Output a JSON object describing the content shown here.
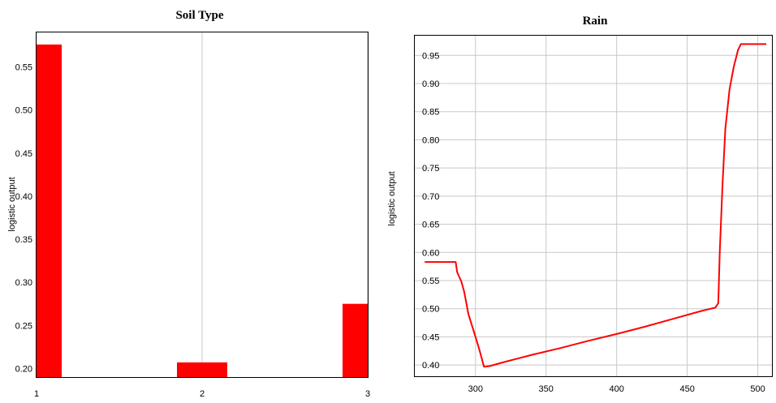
{
  "chart_data": [
    {
      "type": "bar",
      "title": "Soil Type",
      "xlabel": "",
      "ylabel": "logistic output",
      "categories": [
        "1",
        "2",
        "3"
      ],
      "values": [
        0.576,
        0.207,
        0.275
      ],
      "ylim": [
        0.19,
        0.59
      ],
      "yticks": [
        0.2,
        0.25,
        0.3,
        0.35,
        0.4,
        0.45,
        0.5,
        0.55
      ],
      "ytick_labels": [
        "0.20",
        "0.25",
        "0.30",
        "0.35",
        "0.40",
        "0.45",
        "0.50",
        "0.55"
      ],
      "grid": true,
      "color": "#ff0000"
    },
    {
      "type": "line",
      "title": "Rain",
      "xlabel": "",
      "ylabel": "logistic output",
      "xlim": [
        257,
        510
      ],
      "ylim": [
        0.38,
        0.985
      ],
      "xticks": [
        300,
        350,
        400,
        450,
        500
      ],
      "xtick_labels": [
        "300",
        "350",
        "400",
        "450",
        "500"
      ],
      "yticks": [
        0.4,
        0.45,
        0.5,
        0.55,
        0.6,
        0.65,
        0.7,
        0.75,
        0.8,
        0.85,
        0.9,
        0.95
      ],
      "ytick_labels": [
        "0.40",
        "0.45",
        "0.50",
        "0.55",
        "0.60",
        "0.65",
        "0.70",
        "0.75",
        "0.80",
        "0.85",
        "0.90",
        "0.95"
      ],
      "grid": true,
      "color": "#ff0000",
      "x": [
        264,
        286,
        287,
        290,
        292,
        295,
        300,
        303,
        306,
        310,
        320,
        340,
        360,
        380,
        400,
        420,
        440,
        460,
        470,
        472,
        473,
        475,
        477,
        480,
        483,
        486,
        488,
        490,
        495,
        500,
        506
      ],
      "y": [
        0.583,
        0.583,
        0.565,
        0.548,
        0.53,
        0.49,
        0.45,
        0.425,
        0.397,
        0.398,
        0.405,
        0.418,
        0.43,
        0.443,
        0.455,
        0.468,
        0.482,
        0.496,
        0.502,
        0.51,
        0.6,
        0.72,
        0.82,
        0.89,
        0.93,
        0.96,
        0.97,
        0.97,
        0.97,
        0.97,
        0.97
      ]
    }
  ]
}
